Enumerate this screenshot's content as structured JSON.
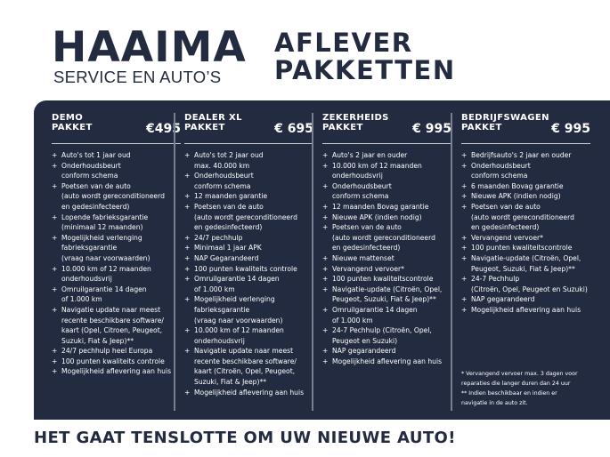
{
  "logo": {
    "name": "HAAIMA",
    "tagline": "SERVICE EN AUTO’S"
  },
  "title": "AFLEVER\nPAKKETTEN",
  "packages": [
    {
      "name": "DEMO\nPAKKET",
      "price": "€495",
      "items": [
        "Auto's tot 1 jaar oud",
        "Onderhoudsbeurt\nconform schema",
        "Poetsen van de auto\n(auto wordt gereconditioneerd\nen gedesinfecteerd)",
        "Lopende fabrieksgarantie\n(minimaal 12 maanden)",
        "Mogelijkheid verlenging\nfabrieksgarantie\n(vraag naar voorwaarden)",
        "10.000 km of 12 maanden\nonderhoudsvrij",
        "Omruilgarantie 14 dagen\nof 1.000 km",
        "Navigatie update naar meest\nrecente beschikbare software/\nkaart (Opel, Citroen, Peugeot,\nSuzuki, Fiat & Jeep)**",
        "24/7 pechhulp heel Europa",
        "100 punten kwaliteits controle",
        "Mogelijkheid aflevering aan huis"
      ]
    },
    {
      "name": "DEALER XL\nPAKKET",
      "price": "€ 695",
      "items": [
        "Auto's tot 2 jaar oud\nmax. 40.000 km",
        "Onderhoudsbeurt\nconform schema",
        "12 maanden garantie",
        "Poetsen van de auto\n(auto wordt gereconditioneerd\nen gedesinfecteerd)",
        "24/7 pechhulp",
        "Minimaal 1 jaar APK",
        "NAP Gegarandeerd",
        "100 punten kwaliteits controle",
        "Omruilgarantie 14 dagen\nof 1.000 km",
        "Mogelijkheid verlenging\nfabrieksgarantie\n(vraag naar voorwaarden)",
        "10.000 km of 12 maanden\nonderhoudsvrij",
        "Navigatie update naar meest\nrecente beschikbare software/\nkaart (Citroën, Opel, Peugeot,\nSuzuki, Fiat & Jeep)**",
        "Mogelijkheid aflevering aan huis"
      ]
    },
    {
      "name": "ZEKERHEIDS\nPAKKET",
      "price": "€ 995",
      "items": [
        "Auto's 2 jaar en ouder",
        "10.000 km of 12 maanden\nonderhoudsvrij",
        "Onderhoudsbeurt\nconform schema",
        "12 maanden Bovag garantie",
        "Nieuwe APK (indien nodig)",
        "Poetsen van de auto\n(auto wordt gereconditioneerd\nen gedesinfecteerd)",
        "Nieuwe mattenset",
        "Vervangend vervoer*",
        "100 punten kwaliteitscontrole",
        "Navigatie-update (Citroën, Opel,\nPeugeot, Suzuki, Fiat & Jeep)**",
        "Omruilgarantie 14 dagen\nof 1.000 km",
        "24-7 Pechhulp (Citroën, Opel,\nPeugeot en Suzuki)",
        "NAP gegarandeerd",
        "Mogelijkheid aflevering aan huis"
      ]
    },
    {
      "name": "BEDRIJFSWAGEN\nPAKKET",
      "price": "€ 995",
      "items": [
        "Bedrijfsauto's 2 jaar en ouder",
        "Onderhoudsbeurt\nconform schema",
        "6 maanden Bovag garantie",
        "Nieuwe APK (indien nodig)",
        "Poetsen van de auto\n(auto wordt gereconditioneerd\nen gedesinfecteerd)",
        "Vervangend vervoer*",
        "100 punten kwaliteitscontrole",
        "Navigatie-update (Citroën, Opel,\nPeugeot, Suzuki, Fiat & Jeep)**",
        "24-7 Pechhulp\n(Citroën, Opel, Peugeot en Suzuki)",
        "NAP gegarandeerd",
        "Mogelijkheid aflevering aan huis"
      ]
    }
  ],
  "footnotes": "* Vervangend vervoer max. 3 dagen voor\n   reparaties die langer duren dan 24 uur\n** Indien beschikbaar en indien er\n    navigatie in de auto zit.",
  "slogan": "HET GAAT TENSLOTTE OM UW NIEUWE AUTO!",
  "colors": {
    "navy": "#232b40",
    "white": "#ffffff"
  }
}
